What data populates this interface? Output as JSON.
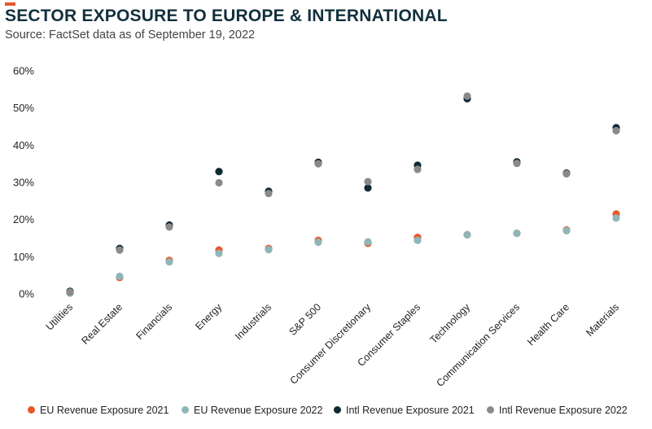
{
  "header": {
    "title": "SECTOR EXPOSURE TO EUROPE & INTERNATIONAL",
    "subtitle": "Source: FactSet data as of September 19, 2022"
  },
  "chart_data": {
    "type": "scatter",
    "title": "SECTOR EXPOSURE TO EUROPE & INTERNATIONAL",
    "subtitle": "Source: FactSet data as of September 19, 2022",
    "xlabel": "",
    "ylabel": "",
    "ylim": [
      0,
      60
    ],
    "yticks": [
      "0%",
      "10%",
      "20%",
      "30%",
      "40%",
      "50%",
      "60%"
    ],
    "grid": false,
    "legend_position": "bottom",
    "categories": [
      "Utilities",
      "Real Estate",
      "Financials",
      "Energy",
      "Industrials",
      "S&P 500",
      "Consumer Discretionary",
      "Consumer Staples",
      "Technology",
      "Communication Services",
      "Health Care",
      "Materials"
    ],
    "series": [
      {
        "name": "EU Revenue Exposure 2021",
        "color": "#e8572a",
        "values": [
          0.3,
          4.4,
          9.0,
          11.8,
          12.2,
          14.4,
          13.6,
          15.2,
          15.9,
          16.3,
          17.2,
          21.5
        ]
      },
      {
        "name": "EU Revenue Exposure 2022",
        "color": "#8fb6b8",
        "values": [
          0.2,
          4.7,
          8.6,
          10.9,
          11.9,
          13.9,
          14.0,
          14.4,
          15.9,
          16.3,
          17.0,
          20.4
        ]
      },
      {
        "name": "Intl Revenue Exposure 2021",
        "color": "#0f2a35",
        "values": [
          0.7,
          12.2,
          18.5,
          32.9,
          27.6,
          35.4,
          28.5,
          34.6,
          52.5,
          35.5,
          32.5,
          44.7
        ]
      },
      {
        "name": "Intl Revenue Exposure 2022",
        "color": "#8a8a8a",
        "values": [
          0.5,
          11.8,
          18.0,
          29.9,
          27.0,
          35.0,
          30.2,
          33.5,
          53.2,
          35.1,
          32.3,
          43.9
        ]
      }
    ]
  }
}
